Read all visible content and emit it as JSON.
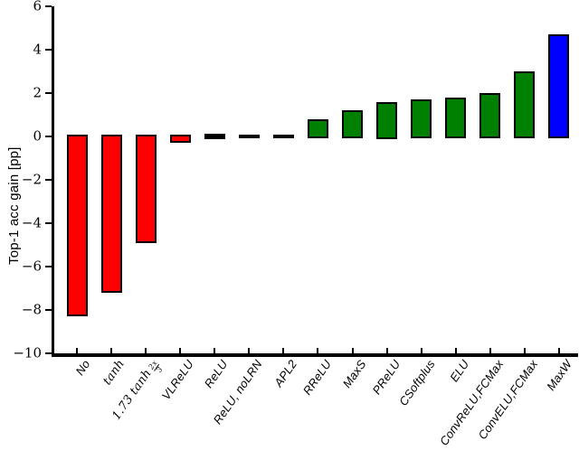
{
  "chart_data": {
    "type": "bar",
    "title": "",
    "xlabel": "",
    "ylabel": "Top-1 acc gain [pp]",
    "ylim": [
      -10,
      6
    ],
    "grid": false,
    "legend": null,
    "bar_edge_color": "#000000",
    "background_color": "#ffffff",
    "categories": [
      "No",
      "tanh",
      "1.73 tanh 2x/3",
      "VLReLU",
      "ReLU",
      "ReLU, noLRN",
      "APL2",
      "RReLU",
      "MaxS",
      "PReLU",
      "CSoftplus",
      "ELU",
      "ConvReLU,FCMax",
      "ConvELU,FCMax",
      "MaxW"
    ],
    "values": [
      -8.2,
      -7.1,
      -4.8,
      -0.2,
      0.0,
      0.0,
      0.0,
      0.7,
      1.1,
      1.5,
      1.6,
      1.7,
      1.9,
      2.9,
      4.6
    ],
    "bar_colors": [
      "#ff0000",
      "#ff0000",
      "#ff0000",
      "#ff0000",
      "#000000",
      "#000000",
      "#000000",
      "#008000",
      "#008000",
      "#008000",
      "#008000",
      "#008000",
      "#008000",
      "#008000",
      "#0000ff"
    ],
    "yticks": [
      {
        "value": 6,
        "label": "6"
      },
      {
        "value": 4,
        "label": "4"
      },
      {
        "value": 2,
        "label": "2"
      },
      {
        "value": 0,
        "label": "0"
      },
      {
        "value": -2,
        "label": "−2"
      },
      {
        "value": -4,
        "label": "−4"
      },
      {
        "value": -6,
        "label": "−6"
      },
      {
        "value": -8,
        "label": "−8"
      },
      {
        "value": -10,
        "label": "−10"
      }
    ],
    "bars": [
      {
        "label": "No",
        "value": -8.2,
        "color": "#ff0000"
      },
      {
        "label": "tanh",
        "value": -7.1,
        "color": "#ff0000",
        "math": true
      },
      {
        "label": "1.73 tanh 2x/3",
        "value": -4.8,
        "color": "#ff0000",
        "math": true,
        "display": {
          "prefix": "1.73 tanh",
          "frac_num": "2x",
          "frac_den": "3"
        }
      },
      {
        "label": "VLReLU",
        "value": -0.2,
        "color": "#ff0000"
      },
      {
        "label": "ReLU",
        "value": 0.0,
        "color": "#000000",
        "ref": true
      },
      {
        "label": "ReLU, noLRN",
        "value": 0.0,
        "color": "#000000"
      },
      {
        "label": "APL2",
        "value": 0.0,
        "color": "#000000"
      },
      {
        "label": "RReLU",
        "value": 0.7,
        "color": "#008000"
      },
      {
        "label": "MaxS",
        "value": 1.1,
        "color": "#008000"
      },
      {
        "label": "PReLU",
        "value": 1.5,
        "color": "#008000"
      },
      {
        "label": "CSoftplus",
        "value": 1.6,
        "color": "#008000"
      },
      {
        "label": "ELU",
        "value": 1.7,
        "color": "#008000"
      },
      {
        "label": "ConvReLU,FCMax",
        "value": 1.9,
        "color": "#008000"
      },
      {
        "label": "ConvELU,FCMax",
        "value": 2.9,
        "color": "#008000"
      },
      {
        "label": "MaxW",
        "value": 4.6,
        "color": "#0000ff"
      }
    ]
  }
}
